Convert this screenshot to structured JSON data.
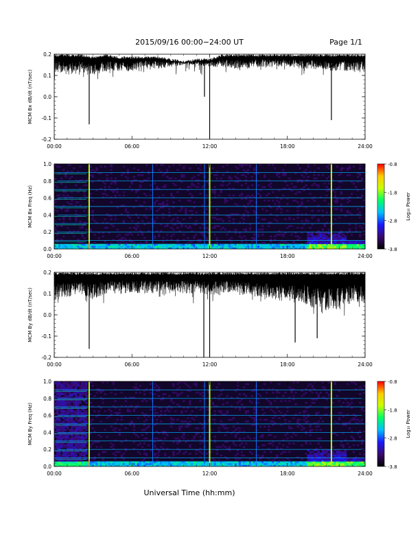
{
  "header": {
    "title": "2015/09/16  00:00−24:00 UT",
    "page": "Page 1/1"
  },
  "footer": {
    "xlabel": "Universal Time (hh:mm)"
  },
  "colors": {
    "trace": "#000000",
    "spectrogram_scale": [
      "#000000",
      "#3a0a6e",
      "#1a1aff",
      "#00bfff",
      "#00ff66",
      "#c8ff00",
      "#ffcc00",
      "#ff0000"
    ]
  },
  "chart_data": [
    {
      "type": "line",
      "id": "bx-trace",
      "ylabel": "MCM Bx dB/dt (nT/sec)",
      "x_ticks": [
        "00:00",
        "06:00",
        "12:00",
        "18:00",
        "24:00"
      ],
      "xlim": [
        0,
        24
      ],
      "ylim": [
        -0.2,
        0.2
      ],
      "y_ticks": [
        "-0.2",
        "-0.1",
        "0.0",
        "0.1",
        "0.2"
      ],
      "envelope": {
        "x": [
          0,
          1,
          2,
          3,
          4,
          5,
          6,
          7,
          8,
          9,
          10,
          11,
          12,
          13,
          14,
          15,
          16,
          17,
          18,
          19,
          20,
          21,
          22,
          23,
          24
        ],
        "upper": [
          0.2,
          0.2,
          0.2,
          0.19,
          0.2,
          0.19,
          0.19,
          0.19,
          0.19,
          0.18,
          0.17,
          0.18,
          0.18,
          0.2,
          0.2,
          0.2,
          0.2,
          0.2,
          0.2,
          0.2,
          0.2,
          0.2,
          0.2,
          0.2,
          0.2
        ],
        "lower": [
          0.12,
          0.1,
          0.12,
          0.1,
          0.12,
          0.12,
          0.12,
          0.14,
          0.13,
          0.14,
          0.15,
          0.15,
          0.14,
          0.14,
          0.13,
          0.13,
          0.14,
          0.14,
          0.14,
          0.13,
          0.13,
          0.12,
          0.12,
          0.12,
          0.12
        ]
      },
      "spikes": [
        {
          "x": 2.7,
          "y": -0.13
        },
        {
          "x": 11.6,
          "y": 0.0
        },
        {
          "x": 12.0,
          "y": -0.2
        },
        {
          "x": 21.4,
          "y": -0.11
        }
      ]
    },
    {
      "type": "heatmap",
      "id": "bx-spectrogram",
      "ylabel": "MCM Bx Freq (Hz)",
      "x_ticks": [
        "00:00",
        "06:00",
        "12:00",
        "18:00",
        "24:00"
      ],
      "xlim": [
        0,
        24
      ],
      "ylim": [
        0,
        1
      ],
      "y_ticks": [
        "0.0",
        "0.2",
        "0.4",
        "0.6",
        "0.8",
        "1.0"
      ],
      "colorbar_label": "Log₁₀ Power",
      "colorbar_ticks": [
        "-0.8",
        "-1.8",
        "-2.8",
        "-3.8"
      ],
      "colorbar_range": [
        -3.8,
        -0.8
      ],
      "harmonic_freqs": [
        0.1,
        0.2,
        0.3,
        0.4,
        0.5,
        0.6,
        0.7,
        0.8,
        0.9
      ],
      "vertical_events": [
        2.7,
        7.6,
        11.6,
        12.0,
        15.6,
        21.4
      ]
    },
    {
      "type": "line",
      "id": "by-trace",
      "ylabel": "MCM By dB/dt (nT/sec)",
      "x_ticks": [
        "00:00",
        "06:00",
        "12:00",
        "18:00",
        "24:00"
      ],
      "xlim": [
        0,
        24
      ],
      "ylim": [
        -0.2,
        0.2
      ],
      "y_ticks": [
        "-0.2",
        "-0.1",
        "0.0",
        "0.1",
        "0.2"
      ],
      "envelope": {
        "x": [
          0,
          1,
          2,
          3,
          4,
          5,
          6,
          7,
          8,
          9,
          10,
          11,
          12,
          13,
          14,
          15,
          16,
          17,
          18,
          19,
          20,
          21,
          22,
          23,
          24
        ],
        "upper": [
          0.2,
          0.2,
          0.2,
          0.2,
          0.2,
          0.2,
          0.2,
          0.2,
          0.2,
          0.2,
          0.2,
          0.2,
          0.2,
          0.2,
          0.2,
          0.2,
          0.2,
          0.2,
          0.2,
          0.2,
          0.2,
          0.2,
          0.2,
          0.2,
          0.2
        ],
        "lower": [
          0.06,
          0.08,
          0.1,
          0.07,
          0.1,
          0.1,
          0.1,
          0.1,
          0.1,
          0.11,
          0.1,
          0.1,
          0.09,
          0.1,
          0.1,
          0.09,
          0.08,
          0.07,
          0.06,
          0.06,
          0.03,
          0.0,
          0.03,
          0.05,
          0.05
        ]
      },
      "spikes": [
        {
          "x": 2.7,
          "y": -0.16
        },
        {
          "x": 11.55,
          "y": -0.2
        },
        {
          "x": 12.0,
          "y": -0.2
        },
        {
          "x": 18.6,
          "y": -0.13
        },
        {
          "x": 20.3,
          "y": -0.11
        }
      ]
    },
    {
      "type": "heatmap",
      "id": "by-spectrogram",
      "ylabel": "MCM By Freq (Hz)",
      "x_ticks": [
        "00:00",
        "06:00",
        "12:00",
        "18:00",
        "24:00"
      ],
      "xlim": [
        0,
        24
      ],
      "ylim": [
        0,
        1
      ],
      "y_ticks": [
        "0.0",
        "0.2",
        "0.4",
        "0.6",
        "0.8",
        "1.0"
      ],
      "colorbar_label": "Log₁₀ Power",
      "colorbar_ticks": [
        "-0.8",
        "-1.8",
        "-2.8",
        "-3.8"
      ],
      "colorbar_range": [
        -3.8,
        -0.8
      ],
      "harmonic_freqs": [
        0.1,
        0.2,
        0.3,
        0.4,
        0.5,
        0.6,
        0.7,
        0.8,
        0.9
      ],
      "vertical_events": [
        2.7,
        7.6,
        11.6,
        12.0,
        15.6,
        21.4
      ]
    }
  ]
}
